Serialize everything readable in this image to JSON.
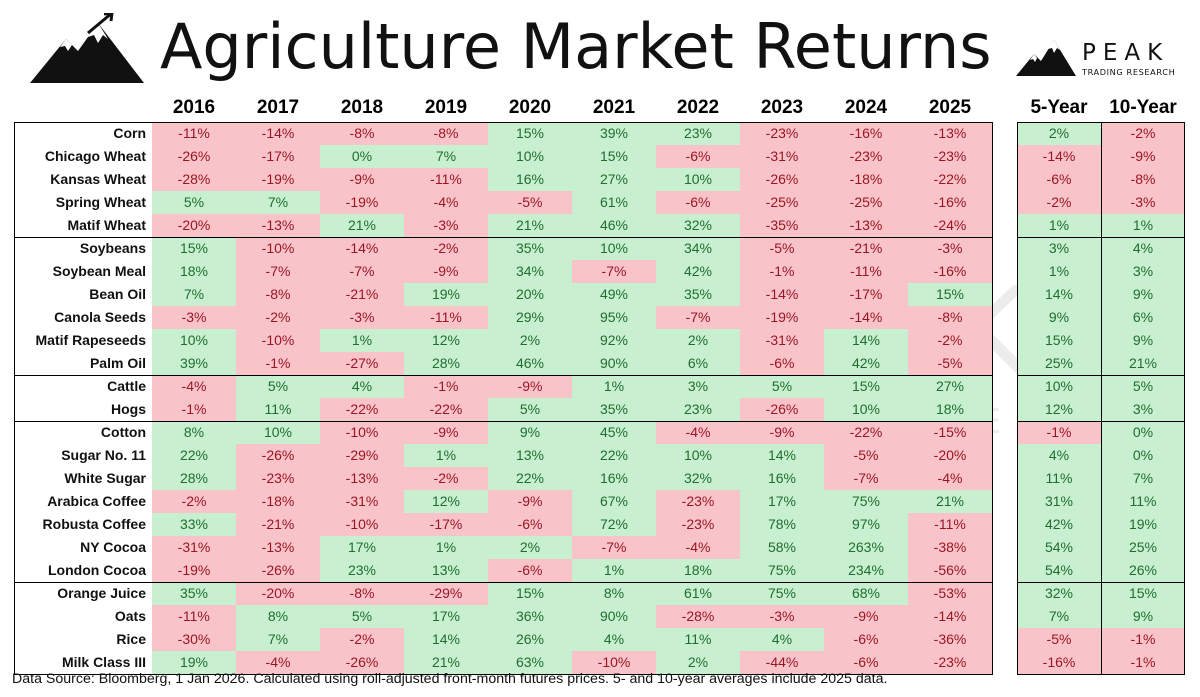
{
  "title": "Agriculture Market Returns",
  "brand": {
    "name": "PEAK",
    "subtitle": "TRADING RESEARCH"
  },
  "footer": "Data Source: Bloomberg, 1 Jan 2026. Calculated using roll-adjusted front-month futures prices. 5- and 10-year averages include 2025 data.",
  "watermark": {
    "name": "PEAK",
    "subtitle": "TRADING RESEARCH"
  },
  "colors": {
    "positive_bg": "#c9efd1",
    "positive_text": "#1e6e2e",
    "negative_bg": "#f9c4c9",
    "negative_text": "#9b1525"
  },
  "chart_data": {
    "type": "table",
    "title": "Agriculture Market Returns",
    "columns": [
      "2016",
      "2017",
      "2018",
      "2019",
      "2020",
      "2021",
      "2022",
      "2023",
      "2024",
      "2025"
    ],
    "avg_columns": [
      "5-Year",
      "10-Year"
    ],
    "groups": [
      [
        {
          "name": "Corn",
          "values": [
            "-11%",
            "-14%",
            "-8%",
            "-8%",
            "15%",
            "39%",
            "23%",
            "-23%",
            "-16%",
            "-13%"
          ],
          "avg": [
            "2%",
            "-2%"
          ]
        },
        {
          "name": "Chicago Wheat",
          "values": [
            "-26%",
            "-17%",
            "0%",
            "7%",
            "10%",
            "15%",
            "-6%",
            "-31%",
            "-23%",
            "-23%"
          ],
          "avg": [
            "-14%",
            "-9%"
          ]
        },
        {
          "name": "Kansas Wheat",
          "values": [
            "-28%",
            "-19%",
            "-9%",
            "-11%",
            "16%",
            "27%",
            "10%",
            "-26%",
            "-18%",
            "-22%"
          ],
          "avg": [
            "-6%",
            "-8%"
          ]
        },
        {
          "name": "Spring Wheat",
          "values": [
            "5%",
            "7%",
            "-19%",
            "-4%",
            "-5%",
            "61%",
            "-6%",
            "-25%",
            "-25%",
            "-16%"
          ],
          "avg": [
            "-2%",
            "-3%"
          ]
        },
        {
          "name": "Matif Wheat",
          "values": [
            "-20%",
            "-13%",
            "21%",
            "-3%",
            "21%",
            "46%",
            "32%",
            "-35%",
            "-13%",
            "-24%"
          ],
          "avg": [
            "1%",
            "1%"
          ]
        }
      ],
      [
        {
          "name": "Soybeans",
          "values": [
            "15%",
            "-10%",
            "-14%",
            "-2%",
            "35%",
            "10%",
            "34%",
            "-5%",
            "-21%",
            "-3%"
          ],
          "avg": [
            "3%",
            "4%"
          ]
        },
        {
          "name": "Soybean Meal",
          "values": [
            "18%",
            "-7%",
            "-7%",
            "-9%",
            "34%",
            "-7%",
            "42%",
            "-1%",
            "-11%",
            "-16%"
          ],
          "avg": [
            "1%",
            "3%"
          ]
        },
        {
          "name": "Bean Oil",
          "values": [
            "7%",
            "-8%",
            "-21%",
            "19%",
            "20%",
            "49%",
            "35%",
            "-14%",
            "-17%",
            "15%"
          ],
          "avg": [
            "14%",
            "9%"
          ]
        },
        {
          "name": "Canola Seeds",
          "values": [
            "-3%",
            "-2%",
            "-3%",
            "-11%",
            "29%",
            "95%",
            "-7%",
            "-19%",
            "-14%",
            "-8%"
          ],
          "avg": [
            "9%",
            "6%"
          ]
        },
        {
          "name": "Matif Rapeseeds",
          "values": [
            "10%",
            "-10%",
            "1%",
            "12%",
            "2%",
            "92%",
            "2%",
            "-31%",
            "14%",
            "-2%"
          ],
          "avg": [
            "15%",
            "9%"
          ]
        },
        {
          "name": "Palm Oil",
          "values": [
            "39%",
            "-1%",
            "-27%",
            "28%",
            "46%",
            "90%",
            "6%",
            "-6%",
            "42%",
            "-5%"
          ],
          "avg": [
            "25%",
            "21%"
          ]
        }
      ],
      [
        {
          "name": "Cattle",
          "values": [
            "-4%",
            "5%",
            "4%",
            "-1%",
            "-9%",
            "1%",
            "3%",
            "5%",
            "15%",
            "27%"
          ],
          "avg": [
            "10%",
            "5%"
          ]
        },
        {
          "name": "Hogs",
          "values": [
            "-1%",
            "11%",
            "-22%",
            "-22%",
            "5%",
            "35%",
            "23%",
            "-26%",
            "10%",
            "18%"
          ],
          "avg": [
            "12%",
            "3%"
          ]
        }
      ],
      [
        {
          "name": "Cotton",
          "values": [
            "8%",
            "10%",
            "-10%",
            "-9%",
            "9%",
            "45%",
            "-4%",
            "-9%",
            "-22%",
            "-15%"
          ],
          "avg": [
            "-1%",
            "0%"
          ]
        },
        {
          "name": "Sugar No. 11",
          "values": [
            "22%",
            "-26%",
            "-29%",
            "1%",
            "13%",
            "22%",
            "10%",
            "14%",
            "-5%",
            "-20%"
          ],
          "avg": [
            "4%",
            "0%"
          ]
        },
        {
          "name": "White Sugar",
          "values": [
            "28%",
            "-23%",
            "-13%",
            "-2%",
            "22%",
            "16%",
            "32%",
            "16%",
            "-7%",
            "-4%"
          ],
          "avg": [
            "11%",
            "7%"
          ]
        },
        {
          "name": "Arabica Coffee",
          "values": [
            "-2%",
            "-18%",
            "-31%",
            "12%",
            "-9%",
            "67%",
            "-23%",
            "17%",
            "75%",
            "21%"
          ],
          "avg": [
            "31%",
            "11%"
          ]
        },
        {
          "name": "Robusta Coffee",
          "values": [
            "33%",
            "-21%",
            "-10%",
            "-17%",
            "-6%",
            "72%",
            "-23%",
            "78%",
            "97%",
            "-11%"
          ],
          "avg": [
            "42%",
            "19%"
          ]
        },
        {
          "name": "NY Cocoa",
          "values": [
            "-31%",
            "-13%",
            "17%",
            "1%",
            "2%",
            "-7%",
            "-4%",
            "58%",
            "263%",
            "-38%"
          ],
          "avg": [
            "54%",
            "25%"
          ]
        },
        {
          "name": "London Cocoa",
          "values": [
            "-19%",
            "-26%",
            "23%",
            "13%",
            "-6%",
            "1%",
            "18%",
            "75%",
            "234%",
            "-56%"
          ],
          "avg": [
            "54%",
            "26%"
          ]
        }
      ],
      [
        {
          "name": "Orange Juice",
          "values": [
            "35%",
            "-20%",
            "-8%",
            "-29%",
            "15%",
            "8%",
            "61%",
            "75%",
            "68%",
            "-53%"
          ],
          "avg": [
            "32%",
            "15%"
          ]
        },
        {
          "name": "Oats",
          "values": [
            "-11%",
            "8%",
            "5%",
            "17%",
            "36%",
            "90%",
            "-28%",
            "-3%",
            "-9%",
            "-14%"
          ],
          "avg": [
            "7%",
            "9%"
          ]
        },
        {
          "name": "Rice",
          "values": [
            "-30%",
            "7%",
            "-2%",
            "14%",
            "26%",
            "4%",
            "11%",
            "4%",
            "-6%",
            "-36%"
          ],
          "avg": [
            "-5%",
            "-1%"
          ]
        },
        {
          "name": "Milk Class III",
          "values": [
            "19%",
            "-4%",
            "-26%",
            "21%",
            "63%",
            "-10%",
            "2%",
            "-44%",
            "-6%",
            "-23%"
          ],
          "avg": [
            "-16%",
            "-1%"
          ]
        }
      ]
    ]
  }
}
